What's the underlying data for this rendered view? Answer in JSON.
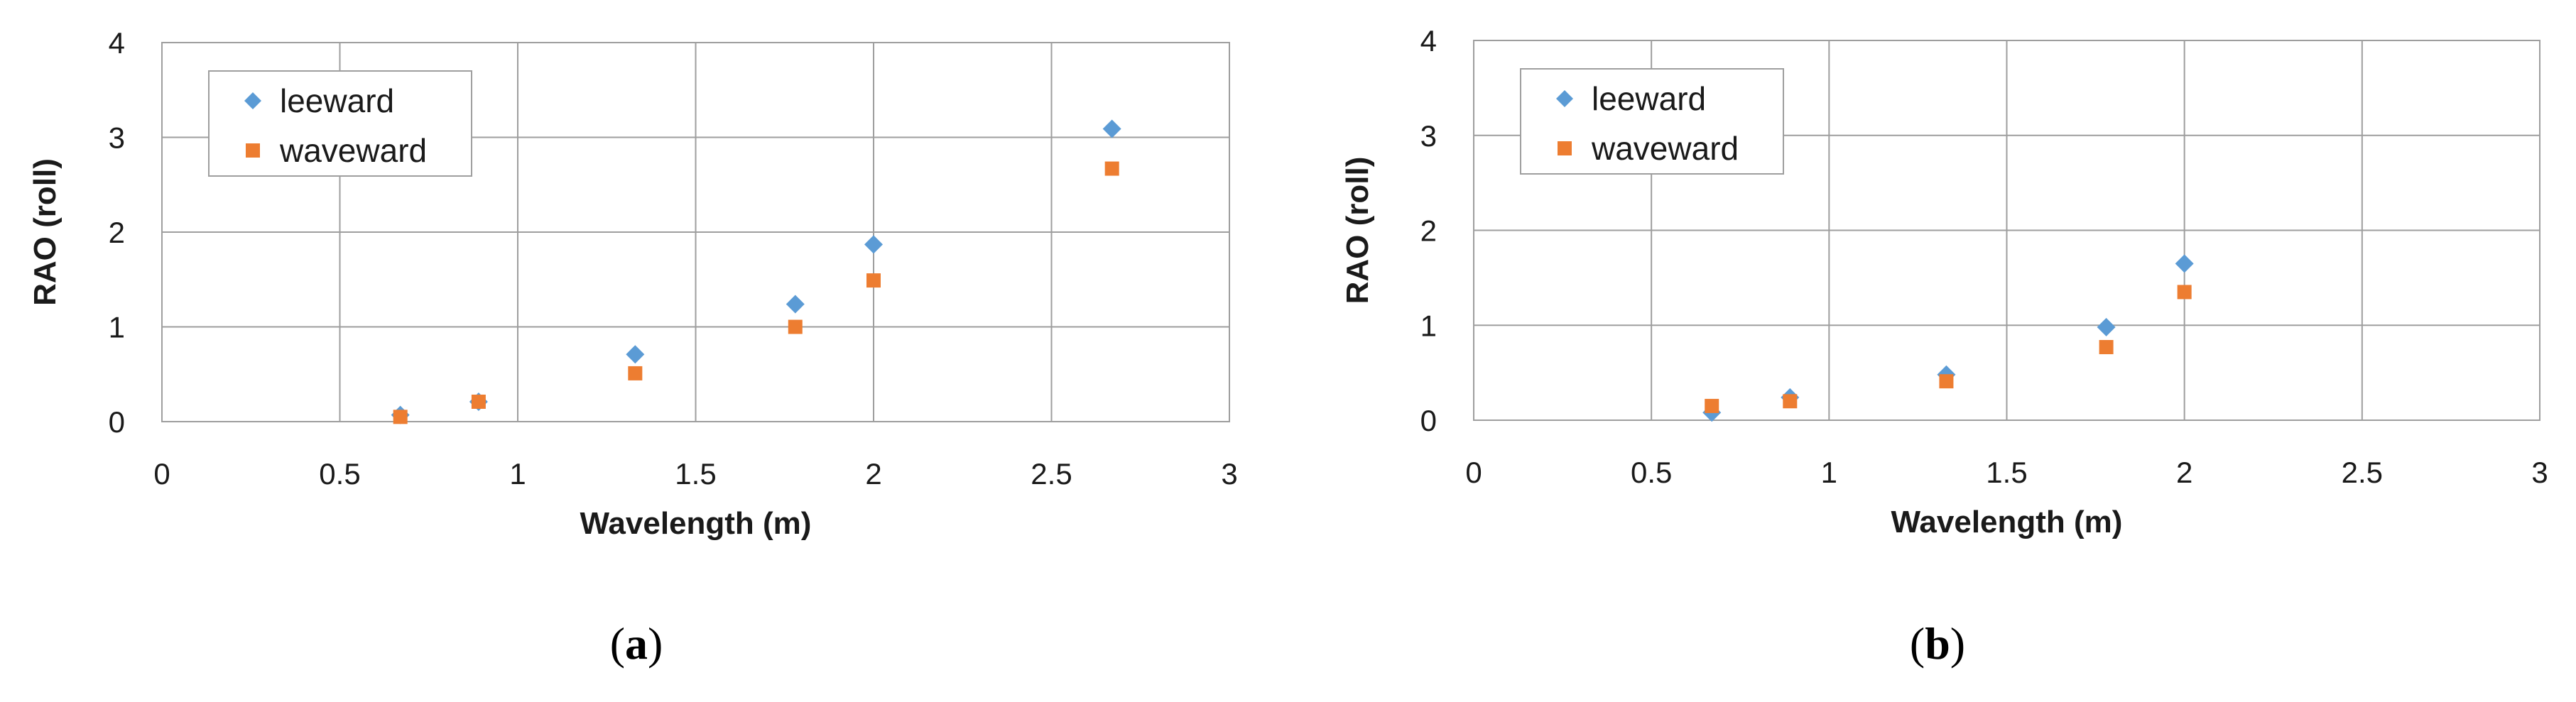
{
  "chart_data": [
    {
      "type": "scatter",
      "panel_label": "a",
      "xlabel": "Wavelength (m)",
      "ylabel": "RAO (roll)",
      "xlim": [
        0,
        3
      ],
      "ylim": [
        0,
        4
      ],
      "xticks": [
        0,
        0.5,
        1,
        1.5,
        2,
        2.5,
        3
      ],
      "yticks": [
        0,
        1,
        2,
        3,
        4
      ],
      "grid": true,
      "legend_position": "top-left",
      "series": [
        {
          "name": "leeward",
          "marker": "diamond",
          "color": "#5b9bd5",
          "x": [
            0.67,
            0.89,
            1.33,
            1.78,
            2.0,
            2.67
          ],
          "y": [
            0.07,
            0.21,
            0.71,
            1.24,
            1.87,
            3.09
          ]
        },
        {
          "name": "waveward",
          "marker": "square",
          "color": "#ed7d31",
          "x": [
            0.67,
            0.89,
            1.33,
            1.78,
            2.0,
            2.67
          ],
          "y": [
            0.05,
            0.21,
            0.51,
            1.0,
            1.49,
            2.67
          ]
        }
      ]
    },
    {
      "type": "scatter",
      "panel_label": "b",
      "xlabel": "Wavelength (m)",
      "ylabel": "RAO (roll)",
      "xlim": [
        0,
        3
      ],
      "ylim": [
        0,
        4
      ],
      "xticks": [
        0,
        0.5,
        1,
        1.5,
        2,
        2.5,
        3
      ],
      "yticks": [
        0,
        1,
        2,
        3,
        4
      ],
      "grid": true,
      "legend_position": "top-left",
      "series": [
        {
          "name": "leeward",
          "marker": "diamond",
          "color": "#5b9bd5",
          "x": [
            0.67,
            0.89,
            1.33,
            1.78,
            2.0
          ],
          "y": [
            0.08,
            0.24,
            0.48,
            0.98,
            1.65
          ]
        },
        {
          "name": "waveward",
          "marker": "square",
          "color": "#ed7d31",
          "x": [
            0.67,
            0.89,
            1.33,
            1.78,
            2.0
          ],
          "y": [
            0.15,
            0.2,
            0.41,
            0.77,
            1.35
          ]
        }
      ]
    }
  ],
  "captions": [
    {
      "label": "a"
    },
    {
      "label": "b"
    }
  ]
}
